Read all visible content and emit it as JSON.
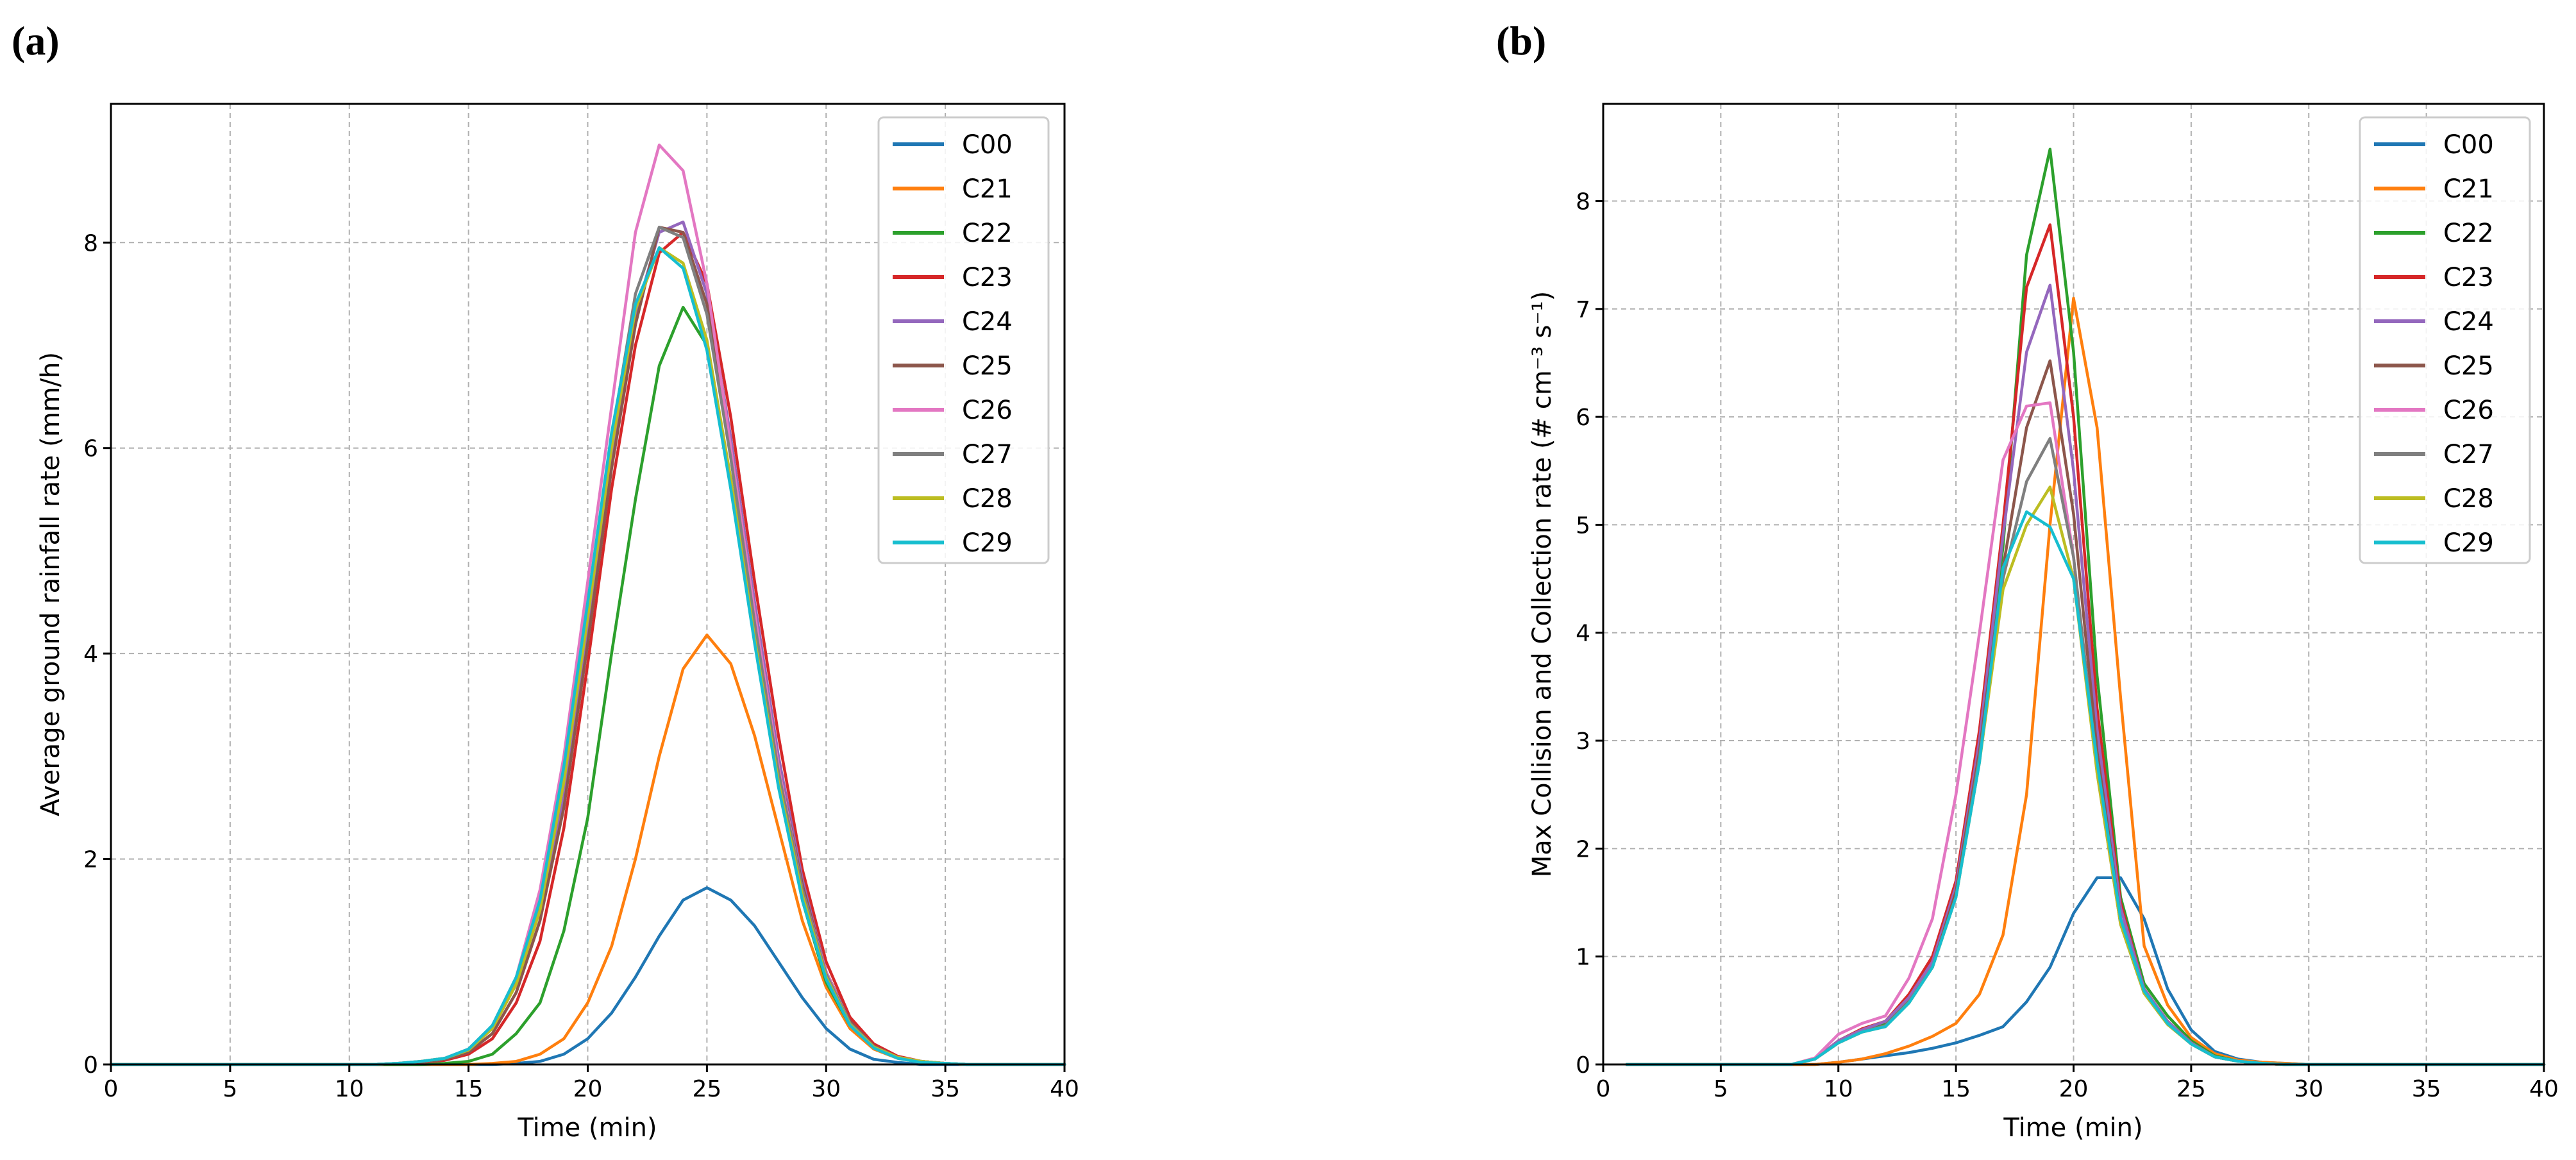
{
  "colors": {
    "C00": "#1f77b4",
    "C21": "#ff7f0e",
    "C22": "#2ca02c",
    "C23": "#d62728",
    "C24": "#9467bd",
    "C25": "#8c564b",
    "C26": "#e377c2",
    "C27": "#7f7f7f",
    "C28": "#bcbd22",
    "C29": "#17becf"
  },
  "chart_data": [
    {
      "panel": "(a)",
      "type": "line",
      "title": "",
      "xlabel": "Time (min)",
      "ylabel": "Average ground rainfall rate (mm/h)",
      "xlim": [
        0,
        40
      ],
      "ylim": [
        0,
        9.35
      ],
      "xticks": [
        0,
        5,
        10,
        15,
        20,
        25,
        30,
        35,
        40
      ],
      "yticks": [
        0,
        2,
        4,
        6,
        8
      ],
      "grid": true,
      "legend_position": "top-right",
      "x": [
        0,
        1,
        2,
        3,
        4,
        5,
        6,
        7,
        8,
        9,
        10,
        11,
        12,
        13,
        14,
        15,
        16,
        17,
        18,
        19,
        20,
        21,
        22,
        23,
        24,
        25,
        26,
        27,
        28,
        29,
        30,
        31,
        32,
        33,
        34,
        35,
        36,
        37,
        38,
        39,
        40
      ],
      "series": [
        {
          "name": "C00",
          "values": [
            0,
            0,
            0,
            0,
            0,
            0,
            0,
            0,
            0,
            0,
            0,
            0,
            0,
            0,
            0,
            0,
            0,
            0.01,
            0.03,
            0.1,
            0.25,
            0.5,
            0.85,
            1.25,
            1.6,
            1.72,
            1.6,
            1.35,
            1.0,
            0.65,
            0.35,
            0.15,
            0.05,
            0.02,
            0,
            0,
            0,
            0,
            0,
            0,
            0
          ]
        },
        {
          "name": "C21",
          "values": [
            0,
            0,
            0,
            0,
            0,
            0,
            0,
            0,
            0,
            0,
            0,
            0,
            0,
            0,
            0,
            0,
            0.01,
            0.03,
            0.1,
            0.25,
            0.6,
            1.15,
            2.0,
            3.0,
            3.85,
            4.18,
            3.9,
            3.2,
            2.3,
            1.4,
            0.75,
            0.35,
            0.15,
            0.06,
            0.02,
            0.01,
            0,
            0,
            0,
            0,
            0
          ]
        },
        {
          "name": "C22",
          "values": [
            0,
            0,
            0,
            0,
            0,
            0,
            0,
            0,
            0,
            0,
            0,
            0,
            0,
            0,
            0.01,
            0.03,
            0.1,
            0.3,
            0.6,
            1.3,
            2.4,
            4.0,
            5.5,
            6.8,
            7.37,
            7.0,
            5.7,
            4.2,
            2.8,
            1.6,
            0.8,
            0.38,
            0.17,
            0.07,
            0.03,
            0.01,
            0,
            0,
            0,
            0,
            0
          ]
        },
        {
          "name": "C23",
          "values": [
            0,
            0,
            0,
            0,
            0,
            0,
            0,
            0,
            0,
            0,
            0,
            0,
            0.01,
            0.02,
            0.04,
            0.1,
            0.25,
            0.6,
            1.2,
            2.3,
            3.9,
            5.6,
            7.0,
            7.9,
            8.1,
            7.6,
            6.3,
            4.7,
            3.2,
            1.9,
            1.0,
            0.46,
            0.2,
            0.08,
            0.03,
            0.01,
            0,
            0,
            0,
            0,
            0
          ]
        },
        {
          "name": "C24",
          "values": [
            0,
            0,
            0,
            0,
            0,
            0,
            0,
            0,
            0,
            0,
            0,
            0,
            0.01,
            0.02,
            0.05,
            0.12,
            0.3,
            0.7,
            1.4,
            2.6,
            4.2,
            5.9,
            7.3,
            8.1,
            8.2,
            7.5,
            6.1,
            4.5,
            3.0,
            1.8,
            0.9,
            0.42,
            0.18,
            0.07,
            0.03,
            0.01,
            0,
            0,
            0,
            0,
            0
          ]
        },
        {
          "name": "C25",
          "values": [
            0,
            0,
            0,
            0,
            0,
            0,
            0,
            0,
            0,
            0,
            0,
            0,
            0.01,
            0.02,
            0.05,
            0.12,
            0.3,
            0.7,
            1.4,
            2.5,
            4.1,
            5.8,
            7.2,
            8.15,
            8.1,
            7.4,
            6.0,
            4.4,
            2.9,
            1.75,
            0.9,
            0.42,
            0.18,
            0.07,
            0.03,
            0.01,
            0,
            0,
            0,
            0,
            0
          ]
        },
        {
          "name": "C26",
          "values": [
            0,
            0,
            0,
            0,
            0,
            0,
            0,
            0,
            0,
            0,
            0,
            0,
            0.01,
            0.03,
            0.06,
            0.15,
            0.38,
            0.85,
            1.7,
            3.0,
            4.7,
            6.4,
            8.1,
            8.95,
            8.7,
            7.6,
            6.0,
            4.4,
            2.9,
            1.7,
            0.9,
            0.4,
            0.17,
            0.07,
            0.03,
            0.01,
            0,
            0,
            0,
            0,
            0
          ]
        },
        {
          "name": "C27",
          "values": [
            0,
            0,
            0,
            0,
            0,
            0,
            0,
            0,
            0,
            0,
            0,
            0,
            0.01,
            0.03,
            0.06,
            0.14,
            0.35,
            0.8,
            1.55,
            2.8,
            4.4,
            6.1,
            7.5,
            8.15,
            8.05,
            7.3,
            5.9,
            4.3,
            2.85,
            1.7,
            0.88,
            0.4,
            0.17,
            0.07,
            0.03,
            0.01,
            0,
            0,
            0,
            0,
            0
          ]
        },
        {
          "name": "C28",
          "values": [
            0,
            0,
            0,
            0,
            0,
            0,
            0,
            0,
            0,
            0,
            0,
            0,
            0.01,
            0.03,
            0.06,
            0.14,
            0.35,
            0.78,
            1.5,
            2.75,
            4.35,
            6.0,
            7.35,
            7.95,
            7.8,
            7.05,
            5.7,
            4.15,
            2.75,
            1.65,
            0.85,
            0.39,
            0.17,
            0.07,
            0.03,
            0.01,
            0,
            0,
            0,
            0,
            0
          ]
        },
        {
          "name": "C29",
          "values": [
            0,
            0,
            0,
            0,
            0,
            0,
            0,
            0,
            0,
            0,
            0,
            0,
            0.01,
            0.03,
            0.06,
            0.15,
            0.38,
            0.85,
            1.6,
            2.9,
            4.5,
            6.15,
            7.4,
            7.95,
            7.75,
            6.95,
            5.6,
            4.1,
            2.7,
            1.6,
            0.83,
            0.38,
            0.16,
            0.06,
            0.02,
            0.01,
            0,
            0,
            0,
            0,
            0
          ]
        }
      ]
    },
    {
      "panel": "(b)",
      "type": "line",
      "title": "",
      "xlabel": "Time (min)",
      "ylabel": "Max Collision and Collection rate (# cm⁻³ s⁻¹)",
      "xlim": [
        0,
        40
      ],
      "ylim": [
        0,
        8.9
      ],
      "xticks": [
        0,
        5,
        10,
        15,
        20,
        25,
        30,
        35,
        40
      ],
      "yticks": [
        0,
        1,
        2,
        3,
        4,
        5,
        6,
        7,
        8
      ],
      "grid": true,
      "legend_position": "top-right",
      "x": [
        1,
        2,
        3,
        4,
        5,
        6,
        7,
        8,
        9,
        10,
        11,
        12,
        13,
        14,
        15,
        16,
        17,
        18,
        19,
        20,
        21,
        22,
        23,
        24,
        25,
        26,
        27,
        28,
        29,
        30,
        31,
        32,
        33,
        34,
        35,
        36,
        37,
        38,
        39,
        40
      ],
      "series": [
        {
          "name": "C00",
          "values": [
            0,
            0,
            0,
            0,
            0,
            0,
            0,
            0,
            0,
            0.02,
            0.05,
            0.08,
            0.11,
            0.15,
            0.2,
            0.27,
            0.35,
            0.58,
            0.9,
            1.4,
            1.73,
            1.73,
            1.35,
            0.7,
            0.32,
            0.12,
            0.05,
            0.02,
            0.01,
            0,
            0,
            0,
            0,
            0,
            0,
            0,
            0,
            0,
            0,
            0
          ]
        },
        {
          "name": "C21",
          "values": [
            0,
            0,
            0,
            0,
            0,
            0,
            0,
            0,
            0,
            0.02,
            0.05,
            0.1,
            0.17,
            0.26,
            0.38,
            0.65,
            1.2,
            2.5,
            5.0,
            7.1,
            5.9,
            3.4,
            1.1,
            0.55,
            0.25,
            0.1,
            0.04,
            0.02,
            0.01,
            0,
            0,
            0,
            0,
            0,
            0,
            0,
            0,
            0,
            0,
            0
          ]
        },
        {
          "name": "C22",
          "values": [
            0,
            0,
            0,
            0,
            0,
            0,
            0,
            0,
            0.05,
            0.2,
            0.3,
            0.38,
            0.6,
            0.95,
            1.6,
            3.0,
            4.8,
            7.5,
            8.48,
            6.6,
            3.6,
            1.55,
            0.75,
            0.45,
            0.22,
            0.08,
            0.03,
            0.01,
            0,
            0,
            0,
            0,
            0,
            0,
            0,
            0,
            0,
            0,
            0,
            0
          ]
        },
        {
          "name": "C23",
          "values": [
            0,
            0,
            0,
            0,
            0,
            0,
            0,
            0,
            0.05,
            0.22,
            0.33,
            0.4,
            0.65,
            1.0,
            1.7,
            3.1,
            5.0,
            7.2,
            7.78,
            6.0,
            3.3,
            1.5,
            0.7,
            0.4,
            0.2,
            0.07,
            0.03,
            0.01,
            0,
            0,
            0,
            0,
            0,
            0,
            0,
            0,
            0,
            0,
            0,
            0
          ]
        },
        {
          "name": "C24",
          "values": [
            0,
            0,
            0,
            0,
            0,
            0,
            0,
            0,
            0.05,
            0.22,
            0.32,
            0.4,
            0.62,
            0.95,
            1.65,
            3.0,
            4.9,
            6.6,
            7.22,
            5.5,
            3.1,
            1.45,
            0.7,
            0.4,
            0.2,
            0.07,
            0.03,
            0.01,
            0,
            0,
            0,
            0,
            0,
            0,
            0,
            0,
            0,
            0,
            0,
            0
          ]
        },
        {
          "name": "C25",
          "values": [
            0,
            0,
            0,
            0,
            0,
            0,
            0,
            0,
            0.05,
            0.2,
            0.3,
            0.36,
            0.58,
            0.9,
            1.6,
            2.9,
            4.6,
            5.9,
            6.52,
            5.1,
            2.9,
            1.35,
            0.68,
            0.38,
            0.19,
            0.07,
            0.03,
            0.01,
            0,
            0,
            0,
            0,
            0,
            0,
            0,
            0,
            0,
            0,
            0,
            0
          ]
        },
        {
          "name": "C26",
          "values": [
            0,
            0,
            0,
            0,
            0,
            0,
            0,
            0,
            0.06,
            0.28,
            0.38,
            0.45,
            0.8,
            1.35,
            2.5,
            4.0,
            5.6,
            6.1,
            6.13,
            4.7,
            2.7,
            1.3,
            0.66,
            0.38,
            0.19,
            0.07,
            0.03,
            0.01,
            0,
            0,
            0,
            0,
            0,
            0,
            0,
            0,
            0,
            0,
            0,
            0
          ]
        },
        {
          "name": "C27",
          "values": [
            0,
            0,
            0,
            0,
            0,
            0,
            0,
            0,
            0.05,
            0.2,
            0.3,
            0.36,
            0.58,
            0.9,
            1.55,
            2.85,
            4.5,
            5.4,
            5.8,
            4.7,
            2.75,
            1.3,
            0.66,
            0.37,
            0.19,
            0.07,
            0.03,
            0.01,
            0,
            0,
            0,
            0,
            0,
            0,
            0,
            0,
            0,
            0,
            0,
            0
          ]
        },
        {
          "name": "C28",
          "values": [
            0,
            0,
            0,
            0,
            0,
            0,
            0,
            0,
            0.05,
            0.2,
            0.3,
            0.35,
            0.57,
            0.9,
            1.55,
            2.8,
            4.4,
            5.0,
            5.35,
            4.5,
            2.7,
            1.3,
            0.66,
            0.37,
            0.19,
            0.07,
            0.03,
            0.01,
            0,
            0,
            0,
            0,
            0,
            0,
            0,
            0,
            0,
            0,
            0,
            0
          ]
        },
        {
          "name": "C29",
          "values": [
            0,
            0,
            0,
            0,
            0,
            0,
            0,
            0,
            0.05,
            0.2,
            0.3,
            0.35,
            0.57,
            0.9,
            1.55,
            2.8,
            4.6,
            5.12,
            4.98,
            4.5,
            2.8,
            1.35,
            0.68,
            0.38,
            0.19,
            0.07,
            0.03,
            0.01,
            0,
            0,
            0,
            0,
            0,
            0,
            0,
            0,
            0,
            0,
            0,
            0
          ]
        }
      ]
    }
  ]
}
